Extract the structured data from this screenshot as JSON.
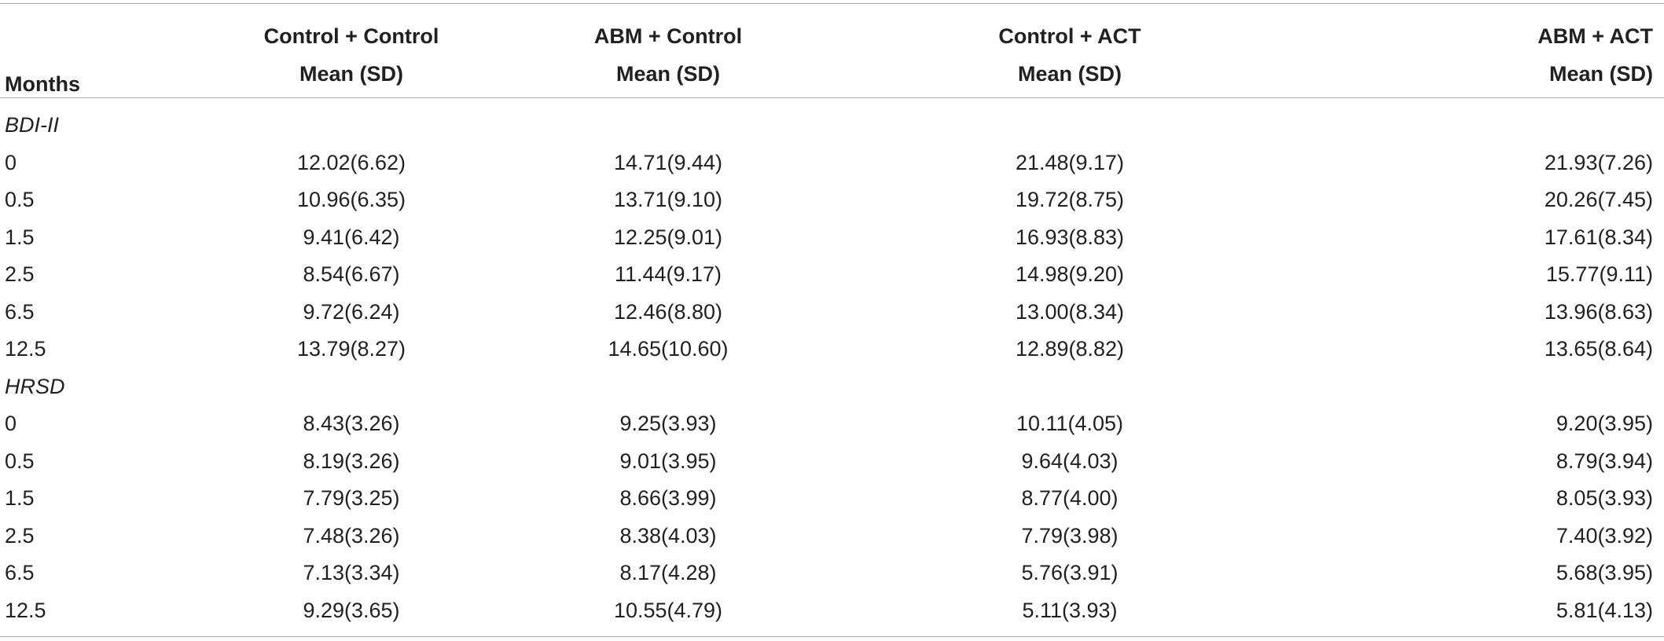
{
  "header": {
    "months_label": "Months",
    "groups": [
      {
        "line1": "Control + Control",
        "line2": "Mean (SD)"
      },
      {
        "line1": "ABM + Control",
        "line2": "Mean (SD)"
      },
      {
        "line1": "Control + ACT",
        "line2": "Mean (SD)"
      },
      {
        "line1": "ABM + ACT",
        "line2": "Mean (SD)"
      }
    ]
  },
  "sections": [
    {
      "label": "BDI-II",
      "rows": [
        {
          "month": "0",
          "values": [
            "12.02(6.62)",
            "14.71(9.44)",
            "21.48(9.17)",
            "21.93(7.26)"
          ]
        },
        {
          "month": "0.5",
          "values": [
            "10.96(6.35)",
            "13.71(9.10)",
            "19.72(8.75)",
            "20.26(7.45)"
          ]
        },
        {
          "month": "1.5",
          "values": [
            "9.41(6.42)",
            "12.25(9.01)",
            "16.93(8.83)",
            "17.61(8.34)"
          ]
        },
        {
          "month": "2.5",
          "values": [
            "8.54(6.67)",
            "11.44(9.17)",
            "14.98(9.20)",
            "15.77(9.11)"
          ]
        },
        {
          "month": "6.5",
          "values": [
            "9.72(6.24)",
            "12.46(8.80)",
            "13.00(8.34)",
            "13.96(8.63)"
          ]
        },
        {
          "month": "12.5",
          "values": [
            "13.79(8.27)",
            "14.65(10.60)",
            "12.89(8.82)",
            "13.65(8.64)"
          ]
        }
      ]
    },
    {
      "label": "HRSD",
      "rows": [
        {
          "month": "0",
          "values": [
            "8.43(3.26)",
            "9.25(3.93)",
            "10.11(4.05)",
            "9.20(3.95)"
          ]
        },
        {
          "month": "0.5",
          "values": [
            "8.19(3.26)",
            "9.01(3.95)",
            "9.64(4.03)",
            "8.79(3.94)"
          ]
        },
        {
          "month": "1.5",
          "values": [
            "7.79(3.25)",
            "8.66(3.99)",
            "8.77(4.00)",
            "8.05(3.93)"
          ]
        },
        {
          "month": "2.5",
          "values": [
            "7.48(3.26)",
            "8.38(4.03)",
            "7.79(3.98)",
            "7.40(3.92)"
          ]
        },
        {
          "month": "6.5",
          "values": [
            "7.13(3.34)",
            "8.17(4.28)",
            "5.76(3.91)",
            "5.68(3.95)"
          ]
        },
        {
          "month": "12.5",
          "values": [
            "9.29(3.65)",
            "10.55(4.79)",
            "5.11(3.93)",
            "5.81(4.13)"
          ]
        }
      ]
    }
  ]
}
